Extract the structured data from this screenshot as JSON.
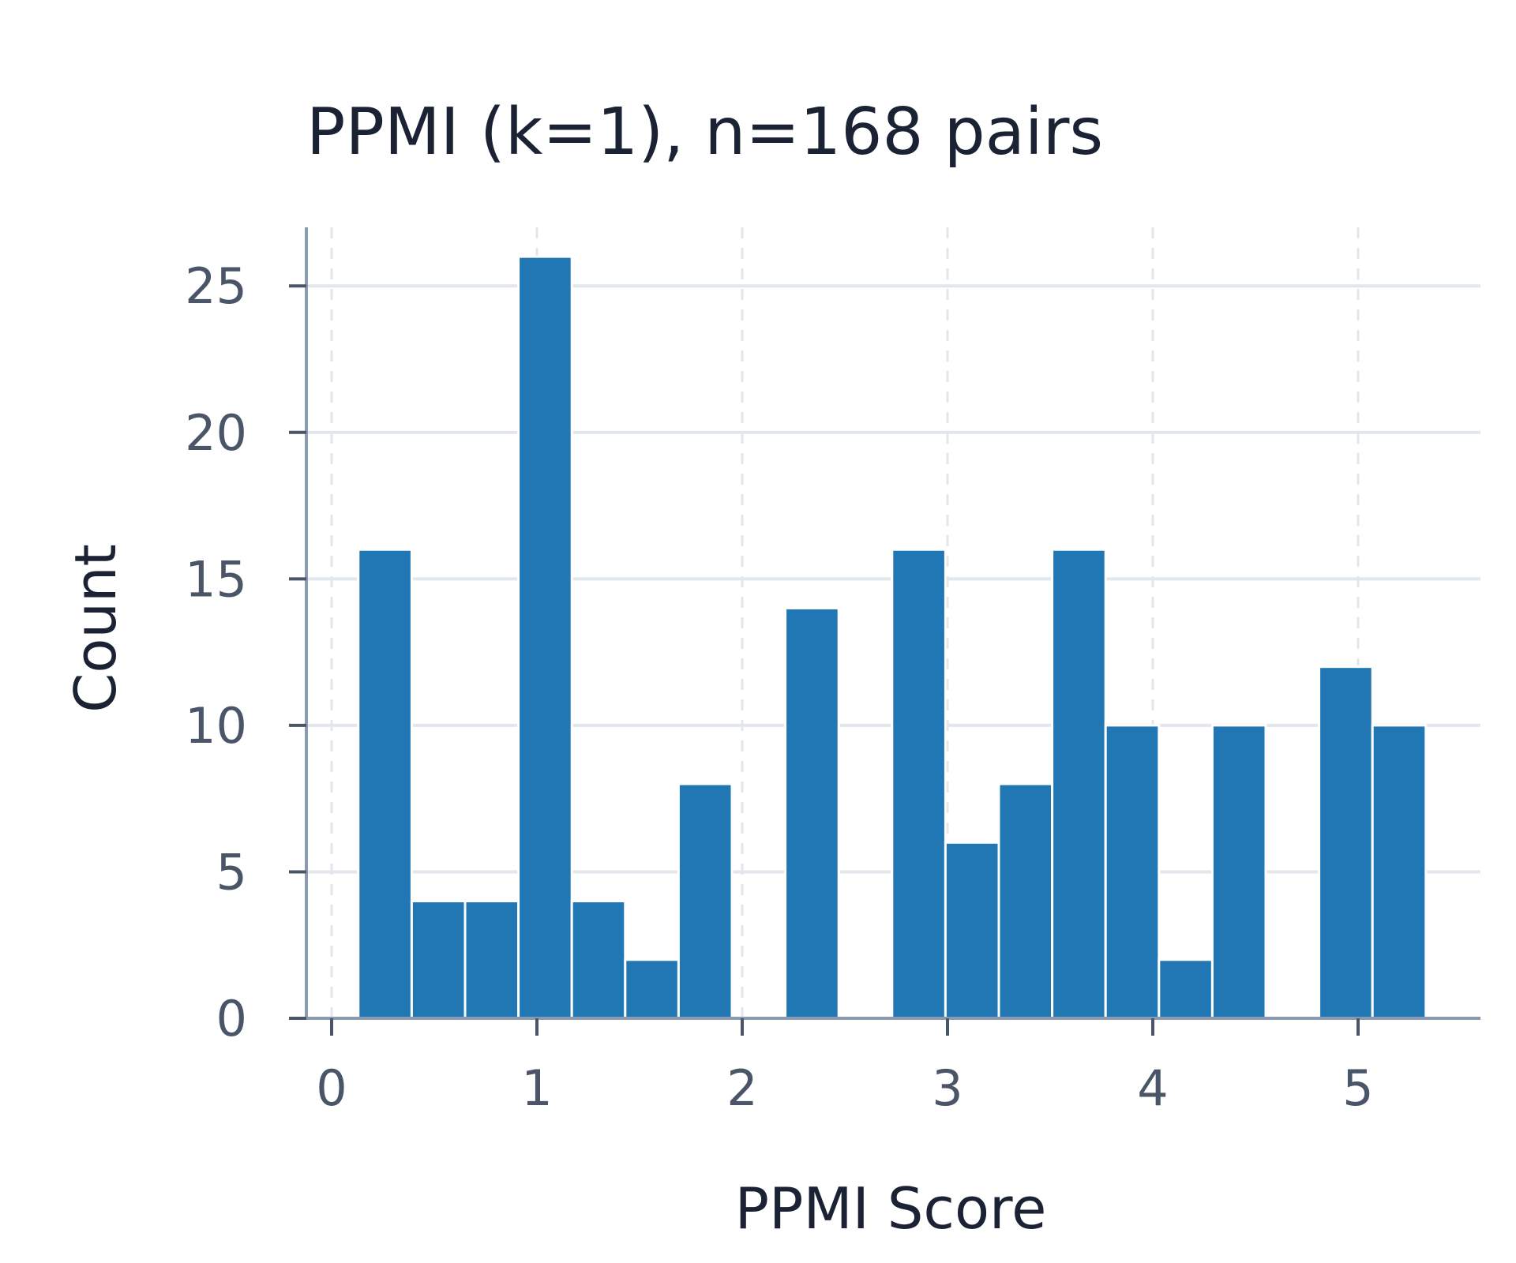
{
  "chart_data": {
    "type": "bar",
    "title": "PPMI (k=1), n=168 pairs",
    "xlabel": "PPMI Score",
    "ylabel": "Count",
    "xlim": [
      -0.13,
      5.6
    ],
    "ylim": [
      0,
      27
    ],
    "xticks": [
      "0",
      "1",
      "2",
      "3",
      "4",
      "5"
    ],
    "yticks": [
      "0",
      "5",
      "10",
      "15",
      "20",
      "25"
    ],
    "bin_width": 0.26,
    "bins": [
      {
        "start": 0.13,
        "end": 0.39,
        "count": 16
      },
      {
        "start": 0.39,
        "end": 0.65,
        "count": 4
      },
      {
        "start": 0.65,
        "end": 0.91,
        "count": 4
      },
      {
        "start": 0.91,
        "end": 1.17,
        "count": 26
      },
      {
        "start": 1.17,
        "end": 1.43,
        "count": 4
      },
      {
        "start": 1.43,
        "end": 1.69,
        "count": 2
      },
      {
        "start": 1.69,
        "end": 1.95,
        "count": 8
      },
      {
        "start": 1.95,
        "end": 2.21,
        "count": 0
      },
      {
        "start": 2.21,
        "end": 2.47,
        "count": 14
      },
      {
        "start": 2.47,
        "end": 2.73,
        "count": 0
      },
      {
        "start": 2.73,
        "end": 2.99,
        "count": 16
      },
      {
        "start": 2.99,
        "end": 3.25,
        "count": 6
      },
      {
        "start": 3.25,
        "end": 3.51,
        "count": 8
      },
      {
        "start": 3.51,
        "end": 3.77,
        "count": 16
      },
      {
        "start": 3.77,
        "end": 4.03,
        "count": 10
      },
      {
        "start": 4.03,
        "end": 4.29,
        "count": 2
      },
      {
        "start": 4.29,
        "end": 4.55,
        "count": 10
      },
      {
        "start": 4.55,
        "end": 4.81,
        "count": 0
      },
      {
        "start": 4.81,
        "end": 5.07,
        "count": 12
      },
      {
        "start": 5.07,
        "end": 5.33,
        "count": 10
      }
    ],
    "grid": true,
    "legend": "none",
    "colors": {
      "bar": "#2176b4",
      "grid": "#e2e7ee",
      "axis": "#8a9ab0",
      "text": "#1a2233",
      "tick_text": "#4a5568"
    }
  }
}
